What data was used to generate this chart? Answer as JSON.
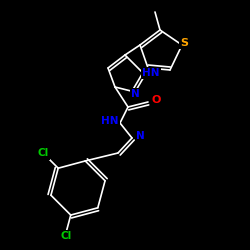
{
  "background_color": "#000000",
  "bond_color": "#ffffff",
  "atom_colors": {
    "N": "#0000ff",
    "S": "#ffa500",
    "O": "#ff0000",
    "Cl": "#00cc00",
    "C": "#ffffff"
  },
  "figsize": [
    2.5,
    2.5
  ],
  "dpi": 100,
  "lw": 1.2
}
